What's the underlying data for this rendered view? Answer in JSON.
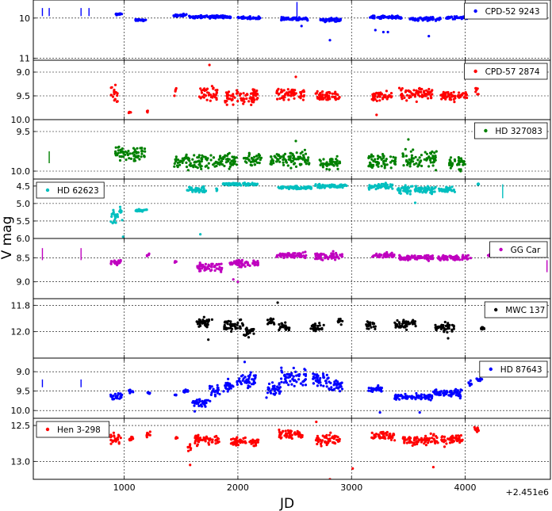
{
  "chart_data": {
    "type": "scatter",
    "xlabel": "JD",
    "ylabel": "V mag",
    "x_offset_label": "+2.451e6",
    "xlim": [
      200,
      4750
    ],
    "x_ticks": [
      1000,
      2000,
      3000,
      4000
    ],
    "x_tick_labels": [
      "1000",
      "2000",
      "3000",
      "4000"
    ],
    "grid": true,
    "y_inverted": true,
    "panels": [
      {
        "name": "CPD-52 9243",
        "color": "#0000ff",
        "legend_position": "top-right",
        "ylim": [
          11.05,
          9.55
        ],
        "y_ticks": [
          10,
          11
        ],
        "y_tick_labels": [
          "10",
          "11"
        ],
        "bars": [
          [
            280,
            9.95,
            9.75
          ],
          [
            340,
            9.95,
            9.75
          ],
          [
            620,
            9.95,
            9.75
          ],
          [
            690,
            9.95,
            9.75
          ],
          [
            2520,
            10.0,
            9.6
          ]
        ],
        "segments": [
          [
            920,
            980,
            9.9,
            0.04
          ],
          [
            1090,
            1200,
            10.05,
            0.03
          ],
          [
            1430,
            1550,
            9.93,
            0.05
          ],
          [
            1570,
            1940,
            9.97,
            0.05
          ],
          [
            2000,
            2200,
            10.0,
            0.05
          ],
          [
            2380,
            2620,
            10.02,
            0.06
          ],
          [
            2720,
            2910,
            10.05,
            0.06
          ],
          [
            3150,
            3440,
            9.98,
            0.05
          ],
          [
            3510,
            3790,
            10.02,
            0.06
          ],
          [
            3820,
            4020,
            9.99,
            0.05
          ]
        ],
        "extra_points": [
          [
            3210,
            10.3
          ],
          [
            3280,
            10.35
          ],
          [
            3320,
            10.35
          ],
          [
            2560,
            10.2
          ],
          [
            2810,
            10.55
          ],
          [
            3680,
            10.45
          ]
        ]
      },
      {
        "name": "CPD-57 2874",
        "color": "#ff0000",
        "legend_position": "top-right",
        "ylim": [
          10.0,
          8.75
        ],
        "y_ticks": [
          9.0,
          9.5,
          10.0
        ],
        "y_tick_labels": [
          "9.0",
          "9.5",
          "10.0"
        ],
        "bars": [],
        "segments": [
          [
            880,
            960,
            9.45,
            0.25
          ],
          [
            1040,
            1060,
            9.85,
            0.05
          ],
          [
            1200,
            1210,
            9.82,
            0.03
          ],
          [
            1440,
            1460,
            9.4,
            0.15
          ],
          [
            1660,
            1820,
            9.45,
            0.25
          ],
          [
            1880,
            2180,
            9.5,
            0.25
          ],
          [
            2340,
            2590,
            9.45,
            0.2
          ],
          [
            2680,
            2900,
            9.5,
            0.15
          ],
          [
            3180,
            3360,
            9.5,
            0.15
          ],
          [
            3420,
            3710,
            9.45,
            0.2
          ],
          [
            3780,
            4020,
            9.5,
            0.15
          ],
          [
            4090,
            4120,
            9.4,
            0.15
          ]
        ],
        "extra_points": [
          [
            1750,
            8.85
          ],
          [
            2510,
            9.1
          ],
          [
            3220,
            9.9
          ]
        ]
      },
      {
        "name": "HD 327083",
        "color": "#008000",
        "legend_position": "top-right",
        "ylim": [
          10.1,
          9.35
        ],
        "y_ticks": [
          9.5,
          10.0
        ],
        "y_tick_labels": [
          "9.5",
          "10.0"
        ],
        "bars": [
          [
            340,
            9.9,
            9.75
          ]
        ],
        "segments": [
          [
            920,
            1200,
            9.78,
            0.12
          ],
          [
            1440,
            1990,
            9.88,
            0.15
          ],
          [
            2050,
            2210,
            9.85,
            0.12
          ],
          [
            2280,
            2640,
            9.85,
            0.15
          ],
          [
            2720,
            2900,
            9.9,
            0.1
          ],
          [
            3150,
            3390,
            9.88,
            0.15
          ],
          [
            3450,
            3750,
            9.85,
            0.17
          ],
          [
            3860,
            4000,
            9.9,
            0.1
          ]
        ],
        "extra_points": [
          [
            2510,
            9.62
          ],
          [
            3500,
            9.6
          ],
          [
            3960,
            10.0
          ]
        ]
      },
      {
        "name": "HD 62623",
        "color": "#00bfbf",
        "legend_position": "top-left",
        "ylim": [
          6.0,
          4.3
        ],
        "y_ticks": [
          4.5,
          5.0,
          5.5,
          6.0
        ],
        "y_tick_labels": [
          "4.5",
          "5.0",
          "5.5",
          "6.0"
        ],
        "bars": [
          [
            4330,
            4.85,
            4.45
          ]
        ],
        "segments": [
          [
            880,
            990,
            5.3,
            0.35
          ],
          [
            1100,
            1200,
            5.2,
            0.05
          ],
          [
            1550,
            1720,
            4.6,
            0.15
          ],
          [
            1810,
            1820,
            4.6,
            0.05
          ],
          [
            1870,
            2180,
            4.45,
            0.05
          ],
          [
            2350,
            2650,
            4.55,
            0.07
          ],
          [
            2680,
            2960,
            4.5,
            0.08
          ],
          [
            3150,
            3360,
            4.5,
            0.12
          ],
          [
            3400,
            3740,
            4.6,
            0.15
          ],
          [
            3770,
            3920,
            4.6,
            0.12
          ],
          [
            4110,
            4120,
            4.45,
            0.05
          ]
        ],
        "extra_points": [
          [
            1670,
            5.88
          ],
          [
            3560,
            4.98
          ],
          [
            990,
            5.95
          ]
        ]
      },
      {
        "name": "GG Car",
        "color": "#bf00bf",
        "legend_position": "top-right",
        "ylim": [
          9.35,
          8.1
        ],
        "y_ticks": [
          8.5,
          9.0
        ],
        "y_tick_labels": [
          "8.5",
          "9.0"
        ],
        "bars": [
          [
            280,
            8.55,
            8.3
          ],
          [
            620,
            8.55,
            8.3
          ],
          [
            4720,
            8.8,
            8.55
          ]
        ],
        "segments": [
          [
            880,
            970,
            8.6,
            0.1
          ],
          [
            1200,
            1220,
            8.45,
            0.07
          ],
          [
            1440,
            1460,
            8.58,
            0.04
          ],
          [
            1640,
            1860,
            8.7,
            0.12
          ],
          [
            1930,
            2180,
            8.62,
            0.1
          ],
          [
            2340,
            2600,
            8.45,
            0.1
          ],
          [
            2680,
            2920,
            8.47,
            0.12
          ],
          [
            3180,
            3380,
            8.45,
            0.08
          ],
          [
            3420,
            3720,
            8.5,
            0.08
          ],
          [
            3760,
            4050,
            8.5,
            0.08
          ],
          [
            4200,
            4220,
            8.45,
            0.03
          ]
        ],
        "extra_points": [
          [
            2000,
            9.0
          ],
          [
            1960,
            8.95
          ]
        ]
      },
      {
        "name": "MWC 137",
        "color": "#000000",
        "legend_position": "top-right",
        "ylim": [
          12.2,
          11.75
        ],
        "y_ticks": [
          11.8,
          12.0
        ],
        "y_tick_labels": [
          "11.8",
          "12.0"
        ],
        "bars": [],
        "segments": [
          [
            1630,
            1790,
            11.93,
            0.05
          ],
          [
            1880,
            2050,
            11.95,
            0.06
          ],
          [
            2050,
            2140,
            12.0,
            0.05
          ],
          [
            2260,
            2320,
            11.92,
            0.05
          ],
          [
            2360,
            2460,
            11.96,
            0.05
          ],
          [
            2640,
            2760,
            11.97,
            0.05
          ],
          [
            2880,
            2920,
            11.92,
            0.03
          ],
          [
            3120,
            3210,
            11.95,
            0.05
          ],
          [
            3380,
            3570,
            11.94,
            0.06
          ],
          [
            3730,
            3910,
            11.97,
            0.05
          ],
          [
            4140,
            4170,
            11.97,
            0.02
          ]
        ],
        "extra_points": [
          [
            2350,
            11.78
          ],
          [
            1740,
            12.06
          ],
          [
            3850,
            12.05
          ]
        ]
      },
      {
        "name": "HD 87643",
        "color": "#0000ff",
        "legend_position": "top-right",
        "ylim": [
          10.2,
          8.65
        ],
        "y_ticks": [
          9.0,
          9.5,
          10.0
        ],
        "y_tick_labels": [
          "9.0",
          "9.5",
          "10.0"
        ],
        "bars": [
          [
            280,
            9.4,
            9.2
          ],
          [
            620,
            9.4,
            9.2
          ]
        ],
        "segments": [
          [
            880,
            980,
            9.65,
            0.12
          ],
          [
            1040,
            1080,
            9.5,
            0.06
          ],
          [
            1200,
            1230,
            9.55,
            0.05
          ],
          [
            1440,
            1460,
            9.6,
            0.03
          ],
          [
            1520,
            1560,
            9.5,
            0.05
          ],
          [
            1600,
            1740,
            9.8,
            0.15
          ],
          [
            1750,
            1850,
            9.5,
            0.3
          ],
          [
            1870,
            1960,
            9.35,
            0.2
          ],
          [
            1990,
            2160,
            9.25,
            0.3
          ],
          [
            2250,
            2380,
            9.45,
            0.25
          ],
          [
            2380,
            2600,
            9.15,
            0.3
          ],
          [
            2650,
            2800,
            9.2,
            0.3
          ],
          [
            2800,
            2920,
            9.35,
            0.2
          ],
          [
            3150,
            3270,
            9.45,
            0.1
          ],
          [
            3380,
            3710,
            9.65,
            0.1
          ],
          [
            3720,
            3980,
            9.55,
            0.15
          ],
          [
            4030,
            4060,
            9.3,
            0.1
          ],
          [
            4100,
            4150,
            9.2,
            0.05
          ]
        ],
        "extra_points": [
          [
            3250,
            10.05
          ],
          [
            3600,
            10.05
          ],
          [
            1050,
            9.55
          ],
          [
            1620,
            10.02
          ],
          [
            2060,
            8.75
          ]
        ]
      },
      {
        "name": "Hen 3-298",
        "color": "#ff0000",
        "legend_position": "top-left",
        "ylim": [
          13.25,
          12.4
        ],
        "y_ticks": [
          12.5,
          13.0
        ],
        "y_tick_labels": [
          "12.5",
          "13.0"
        ],
        "bars": [],
        "segments": [
          [
            880,
            970,
            12.68,
            0.12
          ],
          [
            1040,
            1080,
            12.68,
            0.05
          ],
          [
            1190,
            1230,
            12.62,
            0.06
          ],
          [
            1450,
            1470,
            12.68,
            0.03
          ],
          [
            1560,
            1590,
            12.8,
            0.08
          ],
          [
            1620,
            1840,
            12.7,
            0.1
          ],
          [
            1940,
            2180,
            12.72,
            0.08
          ],
          [
            2360,
            2570,
            12.63,
            0.1
          ],
          [
            2680,
            2900,
            12.7,
            0.12
          ],
          [
            3170,
            3380,
            12.65,
            0.1
          ],
          [
            3450,
            3760,
            12.7,
            0.12
          ],
          [
            3790,
            3980,
            12.7,
            0.1
          ],
          [
            4080,
            4120,
            12.55,
            0.05
          ]
        ],
        "extra_points": [
          [
            2810,
            13.25
          ],
          [
            3010,
            13.1
          ],
          [
            3720,
            13.08
          ],
          [
            1580,
            13.05
          ],
          [
            2690,
            12.45
          ]
        ]
      }
    ]
  }
}
